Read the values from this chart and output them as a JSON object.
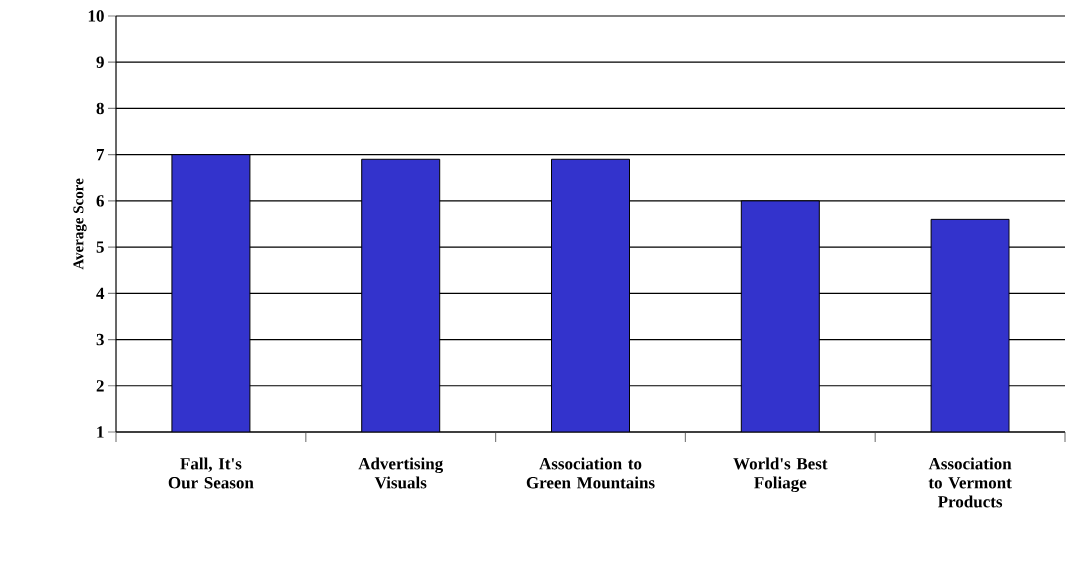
{
  "chart_data": {
    "type": "bar",
    "ylabel": "Average Score",
    "categories": [
      "Fall, It's Our Season",
      "Advertising Visuals",
      "Association to Green Mountains",
      "World's Best Foliage",
      "Association to Vermont Products"
    ],
    "values": [
      7.0,
      6.9,
      6.9,
      6.0,
      5.6
    ],
    "color": "#3333cc",
    "ylim": [
      1,
      10
    ],
    "yticks": [
      1,
      2,
      3,
      4,
      5,
      6,
      7,
      8,
      9,
      10
    ],
    "grid": "y"
  }
}
